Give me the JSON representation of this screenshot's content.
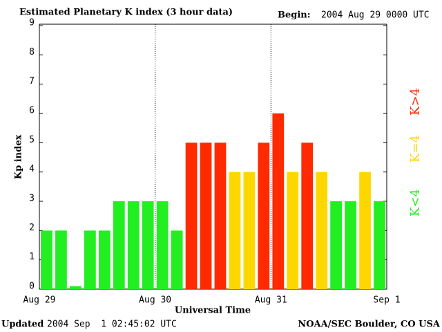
{
  "chart_data": {
    "type": "bar",
    "title": "Estimated Planetary K index (3 hour data)",
    "begin_label": "Begin:",
    "begin_value": "2004 Aug 29 0000 UTC",
    "y_label": "Kp index",
    "x_label": "Universal Time",
    "values": [
      2,
      2,
      0.1,
      2,
      2,
      3,
      3,
      3,
      3,
      2,
      5,
      5,
      5,
      4,
      4,
      5,
      6,
      4,
      5,
      4,
      3,
      3,
      4,
      3
    ],
    "bar_colors": [
      "#22ee22",
      "#22ee22",
      "#22ee22",
      "#22ee22",
      "#22ee22",
      "#22ee22",
      "#22ee22",
      "#22ee22",
      "#22ee22",
      "#22ee22",
      "#ff2a00",
      "#ff2a00",
      "#ff2a00",
      "#ffd700",
      "#ffd700",
      "#ff2a00",
      "#ff2a00",
      "#ffd700",
      "#ff2a00",
      "#ffd700",
      "#22ee22",
      "#22ee22",
      "#ffd700",
      "#22ee22"
    ],
    "xlim": [
      0,
      24
    ],
    "xticks": [
      {
        "value": 0,
        "label": "Aug 29"
      },
      {
        "value": 8,
        "label": "Aug 30"
      },
      {
        "value": 16,
        "label": "Aug 31"
      },
      {
        "value": 24,
        "label": "Sep 1"
      }
    ],
    "ylim": [
      0,
      9
    ],
    "yticks": [
      0,
      1,
      2,
      3,
      4,
      5,
      6,
      7,
      8,
      9
    ],
    "legend": [
      {
        "label": "K<4",
        "color": "#22ee22"
      },
      {
        "label": "K=4",
        "color": "#ffd700"
      },
      {
        "label": "K>4",
        "color": "#ff2a00"
      }
    ],
    "updated_label": "Updated",
    "updated_value": "2004 Sep  1 02:45:02 UTC",
    "credit": "NOAA/SEC Boulder, CO USA"
  }
}
